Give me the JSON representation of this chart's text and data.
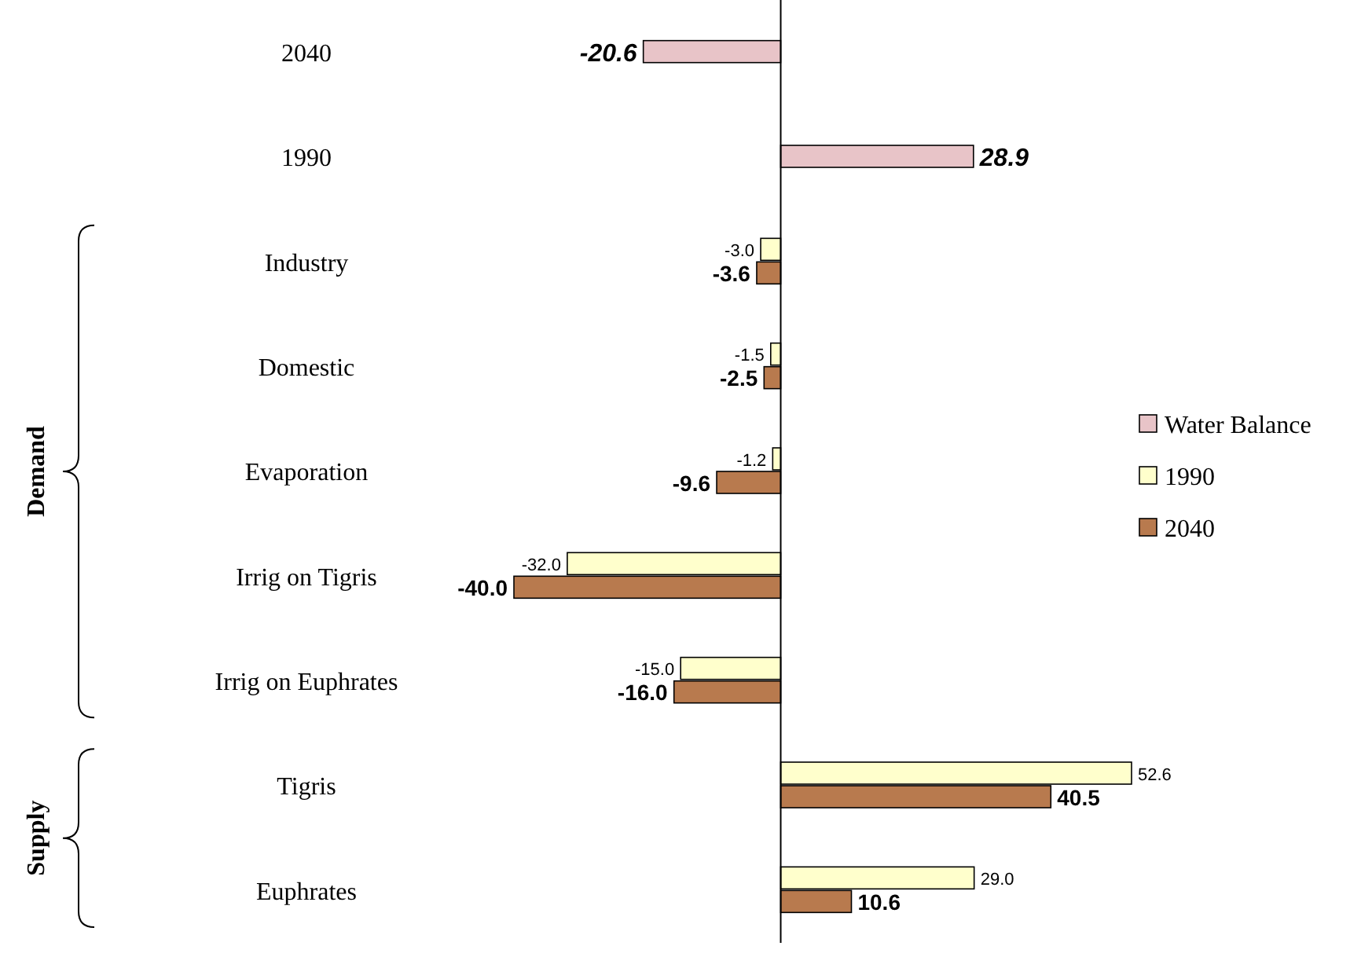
{
  "chart_data": {
    "type": "bar",
    "orientation": "horizontal",
    "categories": [
      "2040",
      "1990",
      "Industry",
      "Domestic",
      "Evaporation",
      "Irrig on Tigris",
      "Irrig on Euphrates",
      "Tigris",
      "Euphrates"
    ],
    "series": [
      {
        "name": "Water Balance",
        "color": "#e8c4c8",
        "values": [
          -20.6,
          28.9,
          null,
          null,
          null,
          null,
          null,
          null,
          null
        ],
        "value_labels": [
          "-20.6",
          "28.9",
          null,
          null,
          null,
          null,
          null,
          null,
          null
        ]
      },
      {
        "name": "1990",
        "color": "#ffffcc",
        "values": [
          null,
          null,
          -3.0,
          -1.5,
          -1.2,
          -32.0,
          -15.0,
          52.6,
          29.0
        ],
        "value_labels": [
          null,
          null,
          "-3.0",
          "-1.5",
          "-1.2",
          "-32.0",
          "-15.0",
          "52.6",
          "29.0"
        ]
      },
      {
        "name": "2040",
        "color": "#b87a4e",
        "values": [
          null,
          null,
          -3.6,
          -2.5,
          -9.6,
          -40.0,
          -16.0,
          40.5,
          10.6
        ],
        "value_labels": [
          null,
          null,
          "-3.6",
          "-2.5",
          "-9.6",
          "-40.0",
          "-16.0",
          "40.5",
          "10.6"
        ]
      }
    ],
    "legend": "right",
    "annotations": [
      "Demand",
      "Supply"
    ]
  }
}
